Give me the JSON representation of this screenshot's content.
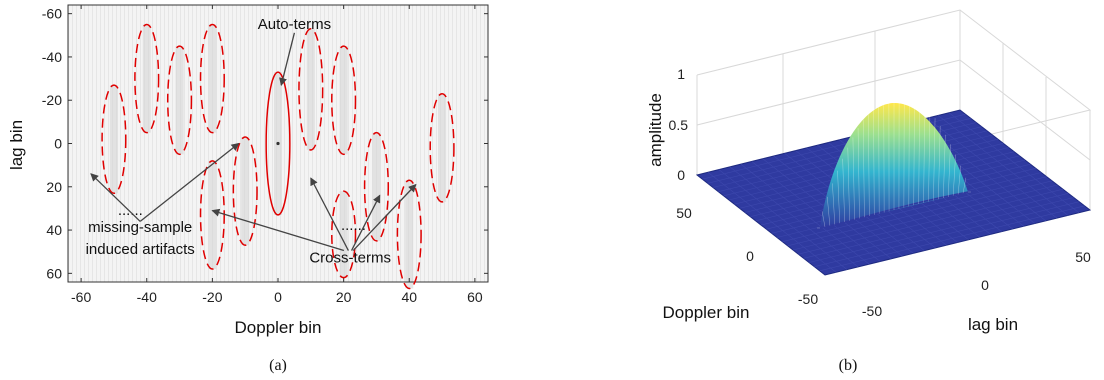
{
  "chart_data": [
    {
      "type": "heatmap",
      "caption": "(a)",
      "xlabel": "Doppler bin",
      "ylabel": "lag bin",
      "xlim": [
        -64,
        64
      ],
      "ylim": [
        64,
        -64
      ],
      "xticks": [
        -60,
        -40,
        -20,
        0,
        20,
        40,
        60
      ],
      "yticks": [
        -60,
        -40,
        -20,
        0,
        20,
        40,
        60
      ],
      "colors": {
        "auto": "#e00000",
        "cross": "#e00000",
        "arrow": "#444444",
        "background": "#f0f0f0"
      },
      "auto_terms": [
        {
          "x": 0,
          "y": 0,
          "rx": 3,
          "ry": 33
        }
      ],
      "cross_terms": [
        {
          "x": -50,
          "y": -2,
          "rx": 3,
          "ry": 25
        },
        {
          "x": -40,
          "y": -30,
          "rx": 3,
          "ry": 25
        },
        {
          "x": -30,
          "y": -20,
          "rx": 3,
          "ry": 25
        },
        {
          "x": -20,
          "y": -30,
          "rx": 3,
          "ry": 25
        },
        {
          "x": -20,
          "y": 33,
          "rx": 3,
          "ry": 25
        },
        {
          "x": -10,
          "y": 22,
          "rx": 3,
          "ry": 25
        },
        {
          "x": 10,
          "y": -25,
          "rx": 3,
          "ry": 28
        },
        {
          "x": 20,
          "y": -20,
          "rx": 3,
          "ry": 25
        },
        {
          "x": 20,
          "y": 42,
          "rx": 3,
          "ry": 20
        },
        {
          "x": 30,
          "y": 20,
          "rx": 3,
          "ry": 25
        },
        {
          "x": 40,
          "y": 42,
          "rx": 3,
          "ry": 25
        },
        {
          "x": 50,
          "y": 2,
          "rx": 3,
          "ry": 25
        }
      ],
      "annotations": [
        {
          "text": "Auto-terms",
          "x": 5,
          "y": -53,
          "arrow_to": [
            1,
            -27
          ]
        },
        {
          "text": "......",
          "x": -45,
          "y": 33
        },
        {
          "text": "missing-sample",
          "x": -42,
          "y": 41
        },
        {
          "text": "induced artifacts",
          "x": -42,
          "y": 51,
          "arrows_to": [
            [
              -57,
              14
            ],
            [
              -12,
              0
            ]
          ]
        },
        {
          "text": "......",
          "x": 23,
          "y": 40
        },
        {
          "text": "Cross-terms",
          "x": 22,
          "y": 55,
          "arrows_to": [
            [
              -20,
              31
            ],
            [
              10,
              16
            ],
            [
              31,
              24
            ],
            [
              42,
              19
            ]
          ]
        }
      ]
    },
    {
      "type": "surface",
      "caption": "(b)",
      "xlabel": "Doppler bin",
      "ylabel": "lag bin",
      "zlabel": "amplitude",
      "zticks": [
        "0",
        "0.5",
        "1"
      ],
      "doppler_ticks": [
        "50",
        "0",
        "-50"
      ],
      "lag_ticks": [
        "-50",
        "0",
        "50"
      ],
      "surface_color": "#2f3aa0",
      "peak_amplitude": 0.75,
      "peak_colors": [
        "#2f3aa0",
        "#33b5cf",
        "#9ce08f",
        "#ffe74a"
      ]
    }
  ]
}
